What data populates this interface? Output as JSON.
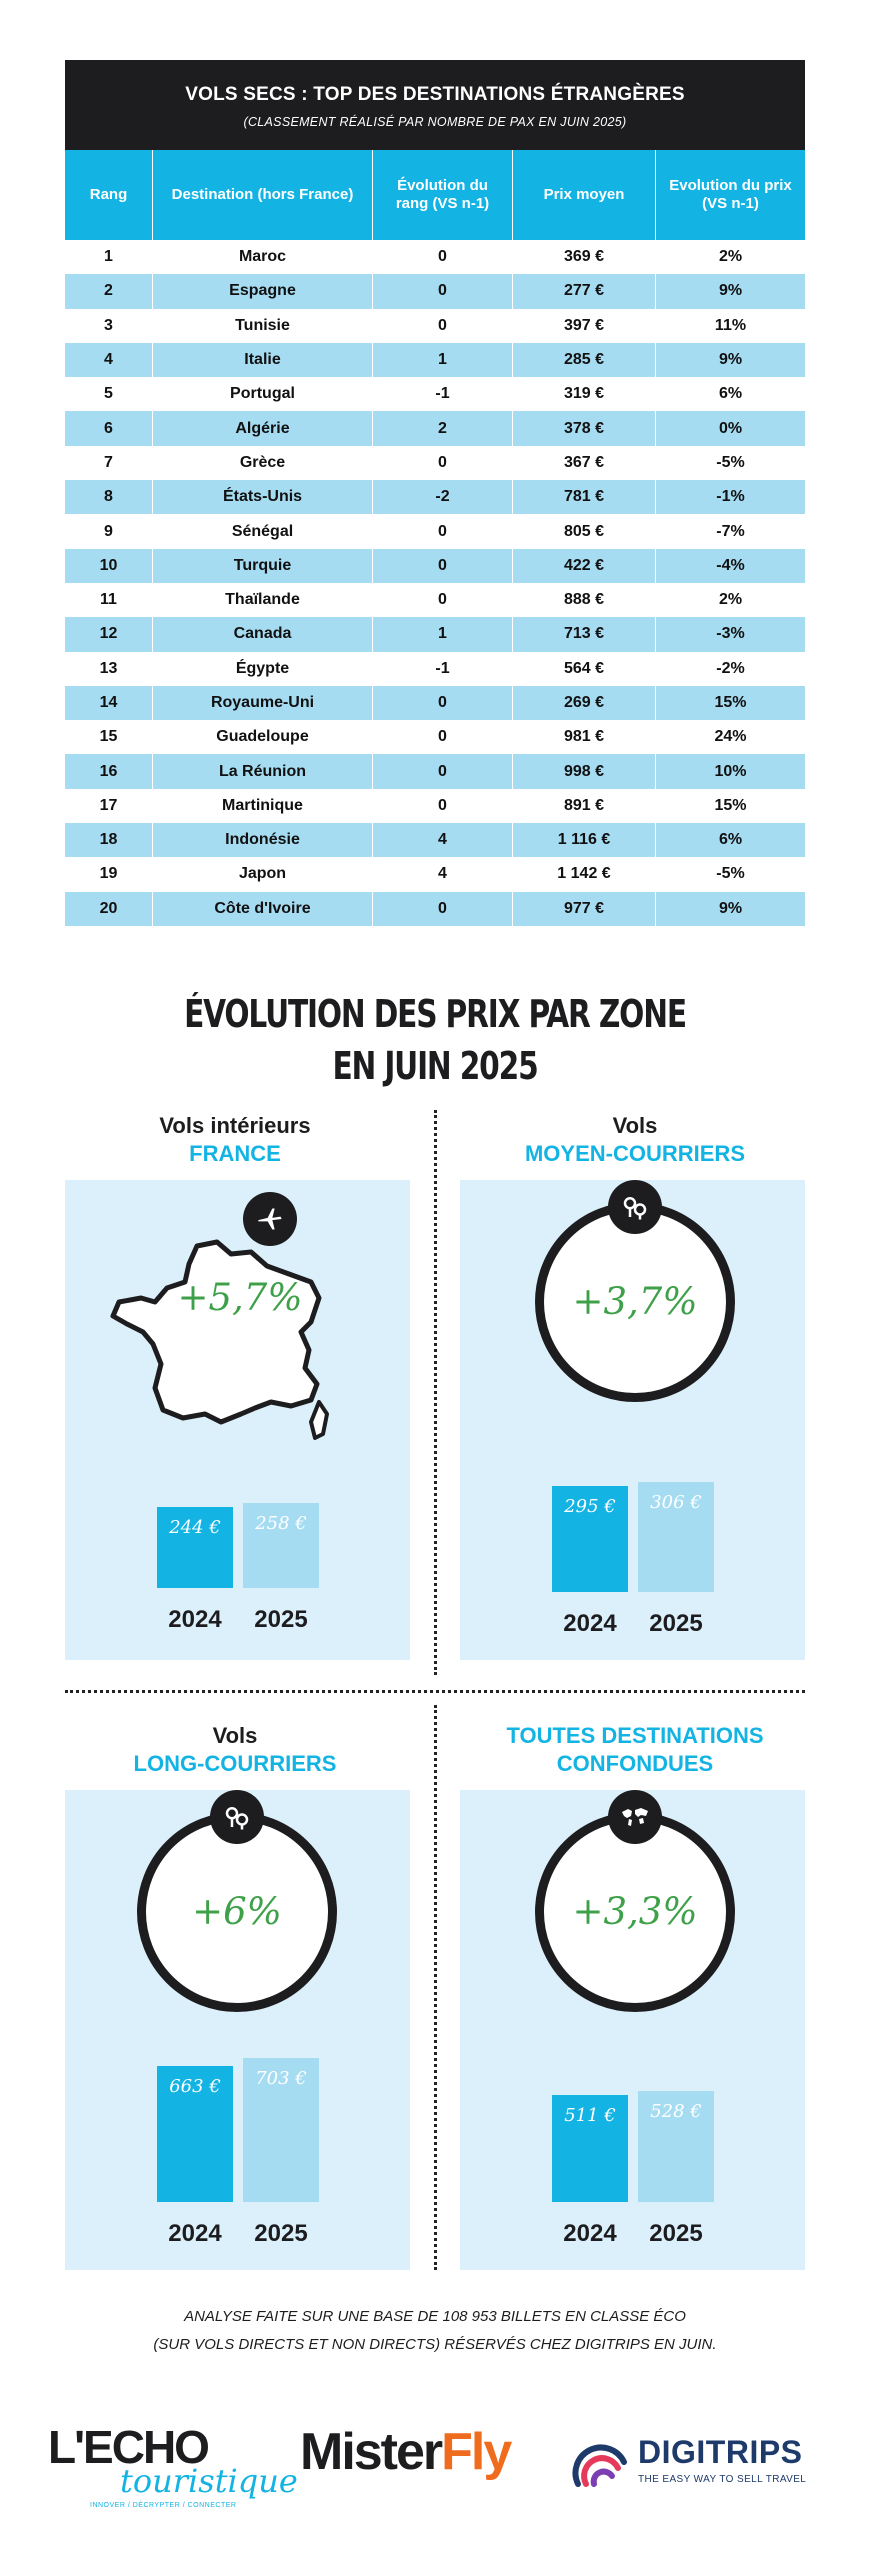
{
  "table": {
    "title": "VOLS SECS : TOP DES DESTINATIONS ÉTRANGÈRES",
    "subtitle": "(CLASSEMENT RÉALISÉ PAR NOMBRE DE PAX EN JUIN 2025)",
    "columns": [
      "Rang",
      "Destination (hors France)",
      "Évolution du rang (VS n-1)",
      "Prix moyen",
      "Evolution du prix (VS n-1)"
    ],
    "rows": [
      [
        "1",
        "Maroc",
        "0",
        "369 €",
        "2%"
      ],
      [
        "2",
        "Espagne",
        "0",
        "277 €",
        "9%"
      ],
      [
        "3",
        "Tunisie",
        "0",
        "397 €",
        "11%"
      ],
      [
        "4",
        "Italie",
        "1",
        "285 €",
        "9%"
      ],
      [
        "5",
        "Portugal",
        "-1",
        "319 €",
        "6%"
      ],
      [
        "6",
        "Algérie",
        "2",
        "378 €",
        "0%"
      ],
      [
        "7",
        "Grèce",
        "0",
        "367 €",
        "-5%"
      ],
      [
        "8",
        "États-Unis",
        "-2",
        "781 €",
        "-1%"
      ],
      [
        "9",
        "Sénégal",
        "0",
        "805 €",
        "-7%"
      ],
      [
        "10",
        "Turquie",
        "0",
        "422 €",
        "-4%"
      ],
      [
        "11",
        "Thaïlande",
        "0",
        "888 €",
        "2%"
      ],
      [
        "12",
        "Canada",
        "1",
        "713 €",
        "-3%"
      ],
      [
        "13",
        "Égypte",
        "-1",
        "564 €",
        "-2%"
      ],
      [
        "14",
        "Royaume-Uni",
        "0",
        "269 €",
        "15%"
      ],
      [
        "15",
        "Guadeloupe",
        "0",
        "981 €",
        "24%"
      ],
      [
        "16",
        "La Réunion",
        "0",
        "998 €",
        "10%"
      ],
      [
        "17",
        "Martinique",
        "0",
        "891 €",
        "15%"
      ],
      [
        "18",
        "Indonésie",
        "4",
        "1 116 €",
        "6%"
      ],
      [
        "19",
        "Japon",
        "4",
        "1 142 €",
        "-5%"
      ],
      [
        "20",
        "Côte d'Ivoire",
        "0",
        "977 €",
        "9%"
      ]
    ]
  },
  "section": {
    "title_line1": "ÉVOLUTION DES PRIX PAR ZONE",
    "title_line2": "EN JUIN 2025"
  },
  "chart_data": [
    {
      "type": "bar",
      "title_line1": "Vols intérieurs",
      "title_line2": "FRANCE",
      "change": "+5,7%",
      "icon": "airplane-icon",
      "categories": [
        "2024",
        "2025"
      ],
      "values": [
        244,
        258
      ],
      "value_labels": [
        "244 €",
        "258 €"
      ]
    },
    {
      "type": "bar",
      "title_line1": "Vols",
      "title_line2": "MOYEN-COURRIERS",
      "change": "+3,7%",
      "icon": "map-pins-icon",
      "categories": [
        "2024",
        "2025"
      ],
      "values": [
        295,
        306
      ],
      "value_labels": [
        "295 €",
        "306 €"
      ]
    },
    {
      "type": "bar",
      "title_line1": "Vols",
      "title_line2": "LONG-COURRIERS",
      "change": "+6%",
      "icon": "map-pins-icon",
      "categories": [
        "2024",
        "2025"
      ],
      "values": [
        663,
        703
      ],
      "value_labels": [
        "663 €",
        "703 €"
      ]
    },
    {
      "type": "bar",
      "title_line1": "",
      "title_line2": "TOUTES DESTINATIONS CONFONDUES",
      "change": "+3,3%",
      "icon": "world-map-icon",
      "categories": [
        "2024",
        "2025"
      ],
      "values": [
        511,
        528
      ],
      "value_labels": [
        "511 €",
        "528 €"
      ]
    }
  ],
  "footnote": {
    "line1": "ANALYSE FAITE SUR UNE BASE DE 108 953 BILLETS EN CLASSE ÉCO",
    "line2": "(SUR VOLS DIRECTS ET NON DIRECTS) RÉSERVÉS CHEZ DIGITRIPS EN JUIN."
  },
  "logos": {
    "echo_main": "L'ECHO",
    "echo_script": "touristique",
    "echo_tag": "INNOVER / DÉCRYPTER / CONNECTER",
    "misterfly_a": "Mister",
    "misterfly_b": "Fly",
    "digitrips": "DIGITRIPS",
    "digitrips_tag": "THE EASY WAY TO SELL TRAVEL"
  },
  "colors": {
    "cyan": "#13b4e3",
    "light_blue": "#a6dcf2",
    "panel_bg": "#dcf0fb",
    "green": "#3fa04a",
    "dark": "#1d1d1f",
    "orange": "#ef6c1f"
  }
}
